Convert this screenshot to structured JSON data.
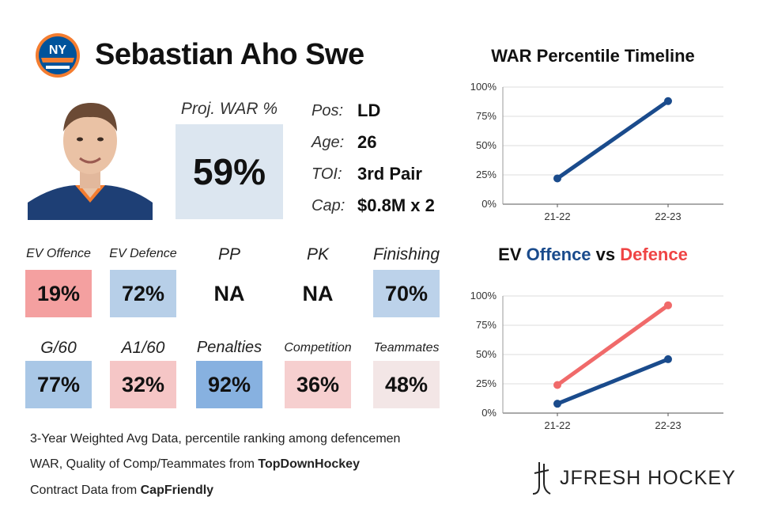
{
  "player": {
    "name": "Sebastian Aho Swe",
    "logo_text": "NY"
  },
  "projection": {
    "label": "Proj. WAR %",
    "value": "59%"
  },
  "info": [
    {
      "label": "Pos:",
      "value": "LD"
    },
    {
      "label": "Age:",
      "value": "26"
    },
    {
      "label": "TOI:",
      "value": "3rd Pair"
    },
    {
      "label": "Cap:",
      "value": "$0.8M x 2"
    }
  ],
  "stats_row1": [
    {
      "label": "EV Offence",
      "value": "19%",
      "color": "#f4a0a0"
    },
    {
      "label": "EV Defence",
      "value": "72%",
      "color": "#b7cfe8"
    },
    {
      "label": "PP",
      "value": "NA",
      "color": "#ffffff"
    },
    {
      "label": "PK",
      "value": "NA",
      "color": "#ffffff"
    },
    {
      "label": "Finishing",
      "value": "70%",
      "color": "#bcd2ea"
    }
  ],
  "stats_row2": [
    {
      "label": "G/60",
      "value": "77%",
      "color": "#a9c7e6"
    },
    {
      "label": "A1/60",
      "value": "32%",
      "color": "#f5c6c6"
    },
    {
      "label": "Penalties",
      "value": "92%",
      "color": "#87b1e0"
    },
    {
      "label": "Competition",
      "value": "36%",
      "color": "#f6cfcf"
    },
    {
      "label": "Teammates",
      "value": "48%",
      "color": "#f3e6e6"
    }
  ],
  "notes": {
    "line1": "3-Year Weighted Avg Data, percentile ranking among defencemen",
    "line2_prefix": "WAR, Quality of Comp/Teammates from ",
    "line2_bold": "TopDownHockey",
    "line3_prefix": "Contract Data from ",
    "line3_bold": "CapFriendly"
  },
  "chart2_title": {
    "part1": "EV ",
    "part2": "Offence",
    "part3": " vs ",
    "part4": "Defence"
  },
  "brand": "JFRESH HOCKEY",
  "chart_data": [
    {
      "type": "line",
      "title": "WAR Percentile Timeline",
      "categories": [
        "21-22",
        "22-23"
      ],
      "ylim": [
        0,
        100
      ],
      "yticks": [
        "0%",
        "25%",
        "50%",
        "75%",
        "100%"
      ],
      "series": [
        {
          "name": "WAR",
          "values": [
            22,
            88
          ],
          "color": "#1a4b8c"
        }
      ]
    },
    {
      "type": "line",
      "title": "EV Offence vs Defence",
      "categories": [
        "21-22",
        "22-23"
      ],
      "ylim": [
        0,
        100
      ],
      "yticks": [
        "0%",
        "25%",
        "50%",
        "75%",
        "100%"
      ],
      "series": [
        {
          "name": "Defence",
          "values": [
            24,
            92
          ],
          "color": "#f06a6a"
        },
        {
          "name": "Offence",
          "values": [
            8,
            46
          ],
          "color": "#1a4b8c"
        }
      ]
    }
  ]
}
